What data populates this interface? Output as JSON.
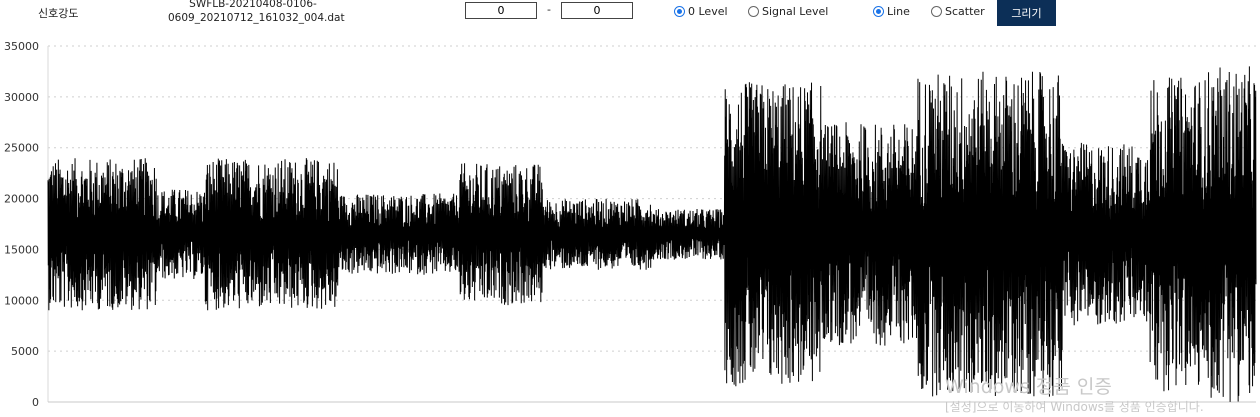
{
  "toolbar": {
    "title": "신호강도",
    "filename_line1": "SWFLB-20210408-0106-",
    "filename_line2": "0609_20210712_161032_004.dat",
    "range_from": "0",
    "range_separator": "-",
    "range_to": "0",
    "level_options": [
      {
        "label": "0 Level",
        "checked": true
      },
      {
        "label": "Signal Level",
        "checked": false
      }
    ],
    "mode_options": [
      {
        "label": "Line",
        "checked": true
      },
      {
        "label": "Scatter",
        "checked": false
      }
    ],
    "draw_button": "그리기"
  },
  "chart_data": {
    "type": "line",
    "ylim": [
      0,
      35000
    ],
    "yticks": [
      "0",
      "5000",
      "10000",
      "15000",
      "20000",
      "25000",
      "30000",
      "35000"
    ],
    "grid": true,
    "color": "#000000",
    "baseline": 16500,
    "series_description": "dense oscillating signal strength; envelope amplitude by segment",
    "segments": [
      {
        "from": 0.0,
        "to": 0.09,
        "amp": 7500
      },
      {
        "from": 0.09,
        "to": 0.13,
        "amp": 4500
      },
      {
        "from": 0.13,
        "to": 0.24,
        "amp": 7500
      },
      {
        "from": 0.24,
        "to": 0.34,
        "amp": 4000
      },
      {
        "from": 0.34,
        "to": 0.41,
        "amp": 7000
      },
      {
        "from": 0.41,
        "to": 0.5,
        "amp": 3500
      },
      {
        "from": 0.5,
        "to": 0.56,
        "amp": 2500
      },
      {
        "from": 0.56,
        "to": 0.64,
        "amp": 15000
      },
      {
        "from": 0.64,
        "to": 0.72,
        "amp": 11000
      },
      {
        "from": 0.72,
        "to": 0.84,
        "amp": 16000
      },
      {
        "from": 0.84,
        "to": 0.91,
        "amp": 9000
      },
      {
        "from": 0.91,
        "to": 0.96,
        "amp": 15500
      },
      {
        "from": 0.96,
        "to": 1.0,
        "amp": 16500
      }
    ]
  },
  "watermark": {
    "line1": "Windows 정품 인증",
    "line2": "[설정]으로 이동하여 Windows를 정품 인증합니다."
  }
}
